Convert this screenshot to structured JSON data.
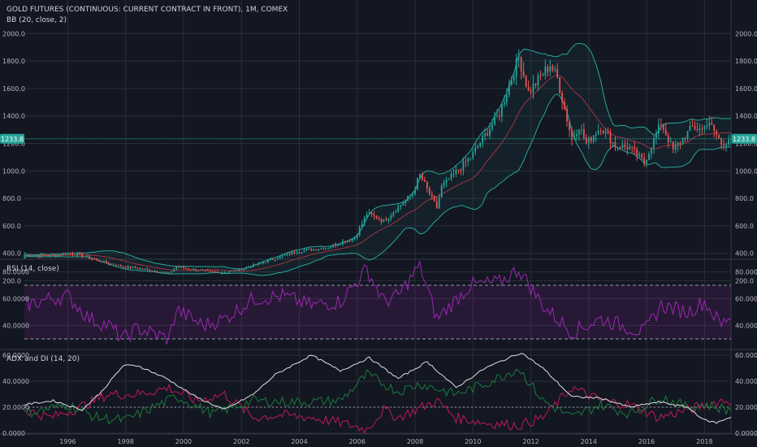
{
  "symbol_title": "GOLD FUTURES (CONTINUOUS: CURRENT CONTRACT IN FRONT), 1M, COMEX",
  "bb_title": "BB (20, close, 2)",
  "rsi_title": "RSI (14, close)",
  "adx_title": "ADX and DI (14, 20)",
  "last_price_label": "1233.8",
  "colors": {
    "background": "#131722",
    "grid": "#2a2e39",
    "up": "#26a69a",
    "down": "#ef5350",
    "bb_band": "#26a69a",
    "bb_basis": "#a0343f",
    "rsi": "#9c27b0",
    "adx": "#e0e0e0",
    "di_plus": "#1b7a3c",
    "di_minus": "#c2185b",
    "last_price": "#26a69a"
  },
  "chart_data": [
    {
      "type": "candlestick",
      "title": "GOLD FUTURES (CONTINUOUS: CURRENT CONTRACT IN FRONT), 1M, COMEX",
      "x_tick_labels": [
        "1996",
        "1998",
        "2000",
        "2002",
        "2004",
        "2006",
        "2008",
        "2010",
        "2012",
        "2014",
        "2016",
        "2018"
      ],
      "y_tick_labels": [
        "200.0",
        "400.0",
        "600.0",
        "800.0",
        "1000.0",
        "1200.0",
        "1400.0",
        "1600.0",
        "1800.0",
        "2000.0"
      ],
      "ylim": [
        150,
        2020
      ],
      "last_price": 1233.8,
      "anchors_date_close": [
        [
          "1994-07",
          385
        ],
        [
          "1995-07",
          385
        ],
        [
          "1996-01",
          400
        ],
        [
          "1996-07",
          385
        ],
        [
          "1997-01",
          350
        ],
        [
          "1997-07",
          325
        ],
        [
          "1998-01",
          300
        ],
        [
          "1998-07",
          290
        ],
        [
          "1999-07",
          255
        ],
        [
          "1999-10",
          300
        ],
        [
          "2000-06",
          280
        ],
        [
          "2001-04",
          260
        ],
        [
          "2001-12",
          280
        ],
        [
          "2002-12",
          345
        ],
        [
          "2003-12",
          415
        ],
        [
          "2004-12",
          440
        ],
        [
          "2005-12",
          515
        ],
        [
          "2006-05",
          690
        ],
        [
          "2006-12",
          635
        ],
        [
          "2007-12",
          835
        ],
        [
          "2008-03",
          970
        ],
        [
          "2008-10",
          730
        ],
        [
          "2008-12",
          885
        ],
        [
          "2009-12",
          1100
        ],
        [
          "2010-12",
          1420
        ],
        [
          "2011-08",
          1830
        ],
        [
          "2011-12",
          1570
        ],
        [
          "2012-09",
          1775
        ],
        [
          "2012-12",
          1675
        ],
        [
          "2013-06",
          1230
        ],
        [
          "2013-09",
          1330
        ],
        [
          "2013-12",
          1200
        ],
        [
          "2014-06",
          1320
        ],
        [
          "2014-12",
          1185
        ],
        [
          "2015-06",
          1170
        ],
        [
          "2015-12",
          1060
        ],
        [
          "2016-07",
          1350
        ],
        [
          "2016-12",
          1150
        ],
        [
          "2017-08",
          1320
        ],
        [
          "2017-12",
          1300
        ],
        [
          "2018-01",
          1345
        ],
        [
          "2018-04",
          1320
        ],
        [
          "2018-08",
          1200
        ],
        [
          "2018-10",
          1215
        ],
        [
          "2018-11",
          1233.8
        ]
      ],
      "bollinger_bands": {
        "length": 20,
        "source": "close",
        "mult": 2
      }
    },
    {
      "type": "line",
      "title": "RSI (14, close)",
      "y_tick_labels": [
        "40.0000",
        "60.0000",
        "80.0000"
      ],
      "bands": [
        30,
        70
      ],
      "ylim": [
        22,
        90
      ],
      "anchors_date_value": [
        [
          "1994-07",
          55
        ],
        [
          "1995-06",
          60
        ],
        [
          "1996-01",
          62
        ],
        [
          "1996-10",
          45
        ],
        [
          "1997-06",
          40
        ],
        [
          "1997-12",
          30
        ],
        [
          "1998-06",
          38
        ],
        [
          "1999-07",
          30
        ],
        [
          "1999-10",
          52
        ],
        [
          "2000-09",
          40
        ],
        [
          "2001-06",
          45
        ],
        [
          "2002-06",
          60
        ],
        [
          "2003-06",
          62
        ],
        [
          "2004-06",
          55
        ],
        [
          "2005-06",
          58
        ],
        [
          "2006-05",
          82
        ],
        [
          "2006-12",
          58
        ],
        [
          "2007-06",
          62
        ],
        [
          "2008-03",
          85
        ],
        [
          "2008-10",
          45
        ],
        [
          "2009-12",
          70
        ],
        [
          "2010-12",
          72
        ],
        [
          "2011-08",
          82
        ],
        [
          "2012-06",
          55
        ],
        [
          "2013-06",
          35
        ],
        [
          "2014-06",
          45
        ],
        [
          "2015-12",
          35
        ],
        [
          "2016-07",
          55
        ],
        [
          "2017-06",
          50
        ],
        [
          "2018-01",
          58
        ],
        [
          "2018-08",
          40
        ],
        [
          "2018-11",
          47
        ]
      ]
    },
    {
      "type": "line",
      "title": "ADX and DI (14, 20)",
      "y_tick_labels": [
        "0.0000",
        "20.0000",
        "40.0000",
        "60.0000"
      ],
      "threshold": 20,
      "ylim": [
        -2,
        66
      ],
      "series": [
        {
          "role": "ADX",
          "anchors_date_value": [
            [
              "1994-07",
              22
            ],
            [
              "1995-07",
              25
            ],
            [
              "1996-07",
              18
            ],
            [
              "1997-03",
              32
            ],
            [
              "1997-12",
              52
            ],
            [
              "1998-06",
              52
            ],
            [
              "1999-06",
              42
            ],
            [
              "2000-06",
              28
            ],
            [
              "2001-06",
              18
            ],
            [
              "2002-06",
              30
            ],
            [
              "2003-03",
              45
            ],
            [
              "2004-06",
              60
            ],
            [
              "2005-06",
              48
            ],
            [
              "2006-06",
              58
            ],
            [
              "2007-06",
              42
            ],
            [
              "2008-06",
              55
            ],
            [
              "2009-06",
              35
            ],
            [
              "2010-06",
              50
            ],
            [
              "2011-09",
              62
            ],
            [
              "2012-06",
              50
            ],
            [
              "2013-06",
              28
            ],
            [
              "2014-06",
              27
            ],
            [
              "2015-06",
              20
            ],
            [
              "2016-06",
              24
            ],
            [
              "2017-06",
              20
            ],
            [
              "2018-01",
              10
            ],
            [
              "2018-06",
              8
            ],
            [
              "2018-11",
              12
            ]
          ]
        },
        {
          "role": "DI+",
          "anchors_date_value": [
            [
              "1994-07",
              15
            ],
            [
              "1996-01",
              22
            ],
            [
              "1997-01",
              12
            ],
            [
              "1998-01",
              10
            ],
            [
              "1999-10",
              28
            ],
            [
              "2001-01",
              15
            ],
            [
              "2002-06",
              25
            ],
            [
              "2003-12",
              24
            ],
            [
              "2005-06",
              25
            ],
            [
              "2006-05",
              45
            ],
            [
              "2007-06",
              32
            ],
            [
              "2008-03",
              38
            ],
            [
              "2009-06",
              30
            ],
            [
              "2010-06",
              38
            ],
            [
              "2011-08",
              50
            ],
            [
              "2012-06",
              25
            ],
            [
              "2013-06",
              12
            ],
            [
              "2014-06",
              22
            ],
            [
              "2015-06",
              15
            ],
            [
              "2016-07",
              28
            ],
            [
              "2017-06",
              20
            ],
            [
              "2018-01",
              22
            ],
            [
              "2018-11",
              18
            ]
          ]
        },
        {
          "role": "DI-",
          "anchors_date_value": [
            [
              "1994-07",
              18
            ],
            [
              "1995-06",
              12
            ],
            [
              "1996-06",
              20
            ],
            [
              "1997-06",
              30
            ],
            [
              "1998-06",
              30
            ],
            [
              "1999-07",
              35
            ],
            [
              "2000-06",
              25
            ],
            [
              "2001-06",
              30
            ],
            [
              "2002-06",
              12
            ],
            [
              "2003-06",
              14
            ],
            [
              "2004-06",
              12
            ],
            [
              "2005-06",
              8
            ],
            [
              "2006-05",
              3
            ],
            [
              "2006-12",
              18
            ],
            [
              "2007-06",
              12
            ],
            [
              "2008-10",
              25
            ],
            [
              "2009-06",
              12
            ],
            [
              "2010-06",
              8
            ],
            [
              "2011-08",
              6
            ],
            [
              "2012-06",
              12
            ],
            [
              "2013-06",
              35
            ],
            [
              "2014-06",
              25
            ],
            [
              "2015-06",
              22
            ],
            [
              "2016-06",
              12
            ],
            [
              "2017-06",
              18
            ],
            [
              "2018-08",
              25
            ],
            [
              "2018-11",
              25
            ]
          ]
        }
      ]
    }
  ]
}
